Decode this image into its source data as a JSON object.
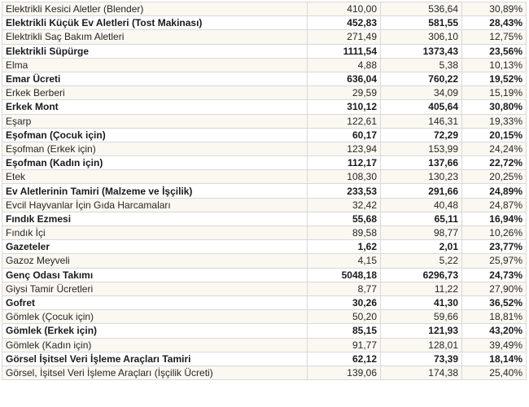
{
  "table": {
    "rows": [
      {
        "name": "Elektrikli Kesici Aletler (Blender)",
        "v1": "410,00",
        "v2": "536,64",
        "pct": "30,89%",
        "bold": false
      },
      {
        "name": "Elektrikli Küçük Ev Aletleri (Tost Makinası)",
        "v1": "452,83",
        "v2": "581,55",
        "pct": "28,43%",
        "bold": true
      },
      {
        "name": "Elektrikli Saç Bakım Aletleri",
        "v1": "271,49",
        "v2": "306,10",
        "pct": "12,75%",
        "bold": false
      },
      {
        "name": "Elektrikli Süpürge",
        "v1": "1111,54",
        "v2": "1373,43",
        "pct": "23,56%",
        "bold": true
      },
      {
        "name": "Elma",
        "v1": "4,88",
        "v2": "5,38",
        "pct": "10,13%",
        "bold": false
      },
      {
        "name": "Emar Ücreti",
        "v1": "636,04",
        "v2": "760,22",
        "pct": "19,52%",
        "bold": true
      },
      {
        "name": "Erkek Berberi",
        "v1": "29,59",
        "v2": "34,09",
        "pct": "15,19%",
        "bold": false
      },
      {
        "name": "Erkek Mont",
        "v1": "310,12",
        "v2": "405,64",
        "pct": "30,80%",
        "bold": true
      },
      {
        "name": "Eşarp",
        "v1": "122,61",
        "v2": "146,31",
        "pct": "19,33%",
        "bold": false
      },
      {
        "name": "Eşofman (Çocuk için)",
        "v1": "60,17",
        "v2": "72,29",
        "pct": "20,15%",
        "bold": true
      },
      {
        "name": "Eşofman (Erkek için)",
        "v1": "123,94",
        "v2": "153,99",
        "pct": "24,24%",
        "bold": false
      },
      {
        "name": "Eşofman (Kadın için)",
        "v1": "112,17",
        "v2": "137,66",
        "pct": "22,72%",
        "bold": true
      },
      {
        "name": "Etek",
        "v1": "108,30",
        "v2": "130,23",
        "pct": "20,25%",
        "bold": false
      },
      {
        "name": "Ev Aletlerinin Tamiri (Malzeme ve İşçilik)",
        "v1": "233,53",
        "v2": "291,66",
        "pct": "24,89%",
        "bold": true
      },
      {
        "name": "Evcil Hayvanlar İçin Gıda Harcamaları",
        "v1": "32,42",
        "v2": "40,48",
        "pct": "24,87%",
        "bold": false
      },
      {
        "name": "Fındık Ezmesi",
        "v1": "55,68",
        "v2": "65,11",
        "pct": "16,94%",
        "bold": true
      },
      {
        "name": "Fındık İçi",
        "v1": "89,58",
        "v2": "98,77",
        "pct": "10,26%",
        "bold": false
      },
      {
        "name": "Gazeteler",
        "v1": "1,62",
        "v2": "2,01",
        "pct": "23,77%",
        "bold": true
      },
      {
        "name": "Gazoz Meyveli",
        "v1": "4,15",
        "v2": "5,22",
        "pct": "25,97%",
        "bold": false
      },
      {
        "name": "Genç Odası Takımı",
        "v1": "5048,18",
        "v2": "6296,73",
        "pct": "24,73%",
        "bold": true
      },
      {
        "name": "Giysi Tamir Ücretleri",
        "v1": "8,77",
        "v2": "11,22",
        "pct": "27,90%",
        "bold": false
      },
      {
        "name": "Gofret",
        "v1": "30,26",
        "v2": "41,30",
        "pct": "36,52%",
        "bold": true
      },
      {
        "name": "Gömlek (Çocuk için)",
        "v1": "50,20",
        "v2": "59,66",
        "pct": "18,81%",
        "bold": false
      },
      {
        "name": "Gömlek (Erkek için)",
        "v1": "85,15",
        "v2": "121,93",
        "pct": "43,20%",
        "bold": true
      },
      {
        "name": "Gömlek (Kadın için)",
        "v1": "91,77",
        "v2": "128,01",
        "pct": "39,49%",
        "bold": false
      },
      {
        "name": "Görsel İşitsel Veri İşleme Araçları Tamiri",
        "v1": "62,12",
        "v2": "73,39",
        "pct": "18,14%",
        "bold": true
      },
      {
        "name": "Görsel, İşitsel Veri İşleme Araçları (İşçilik Ücreti)",
        "v1": "139,06",
        "v2": "174,38",
        "pct": "25,40%",
        "bold": false
      }
    ]
  }
}
